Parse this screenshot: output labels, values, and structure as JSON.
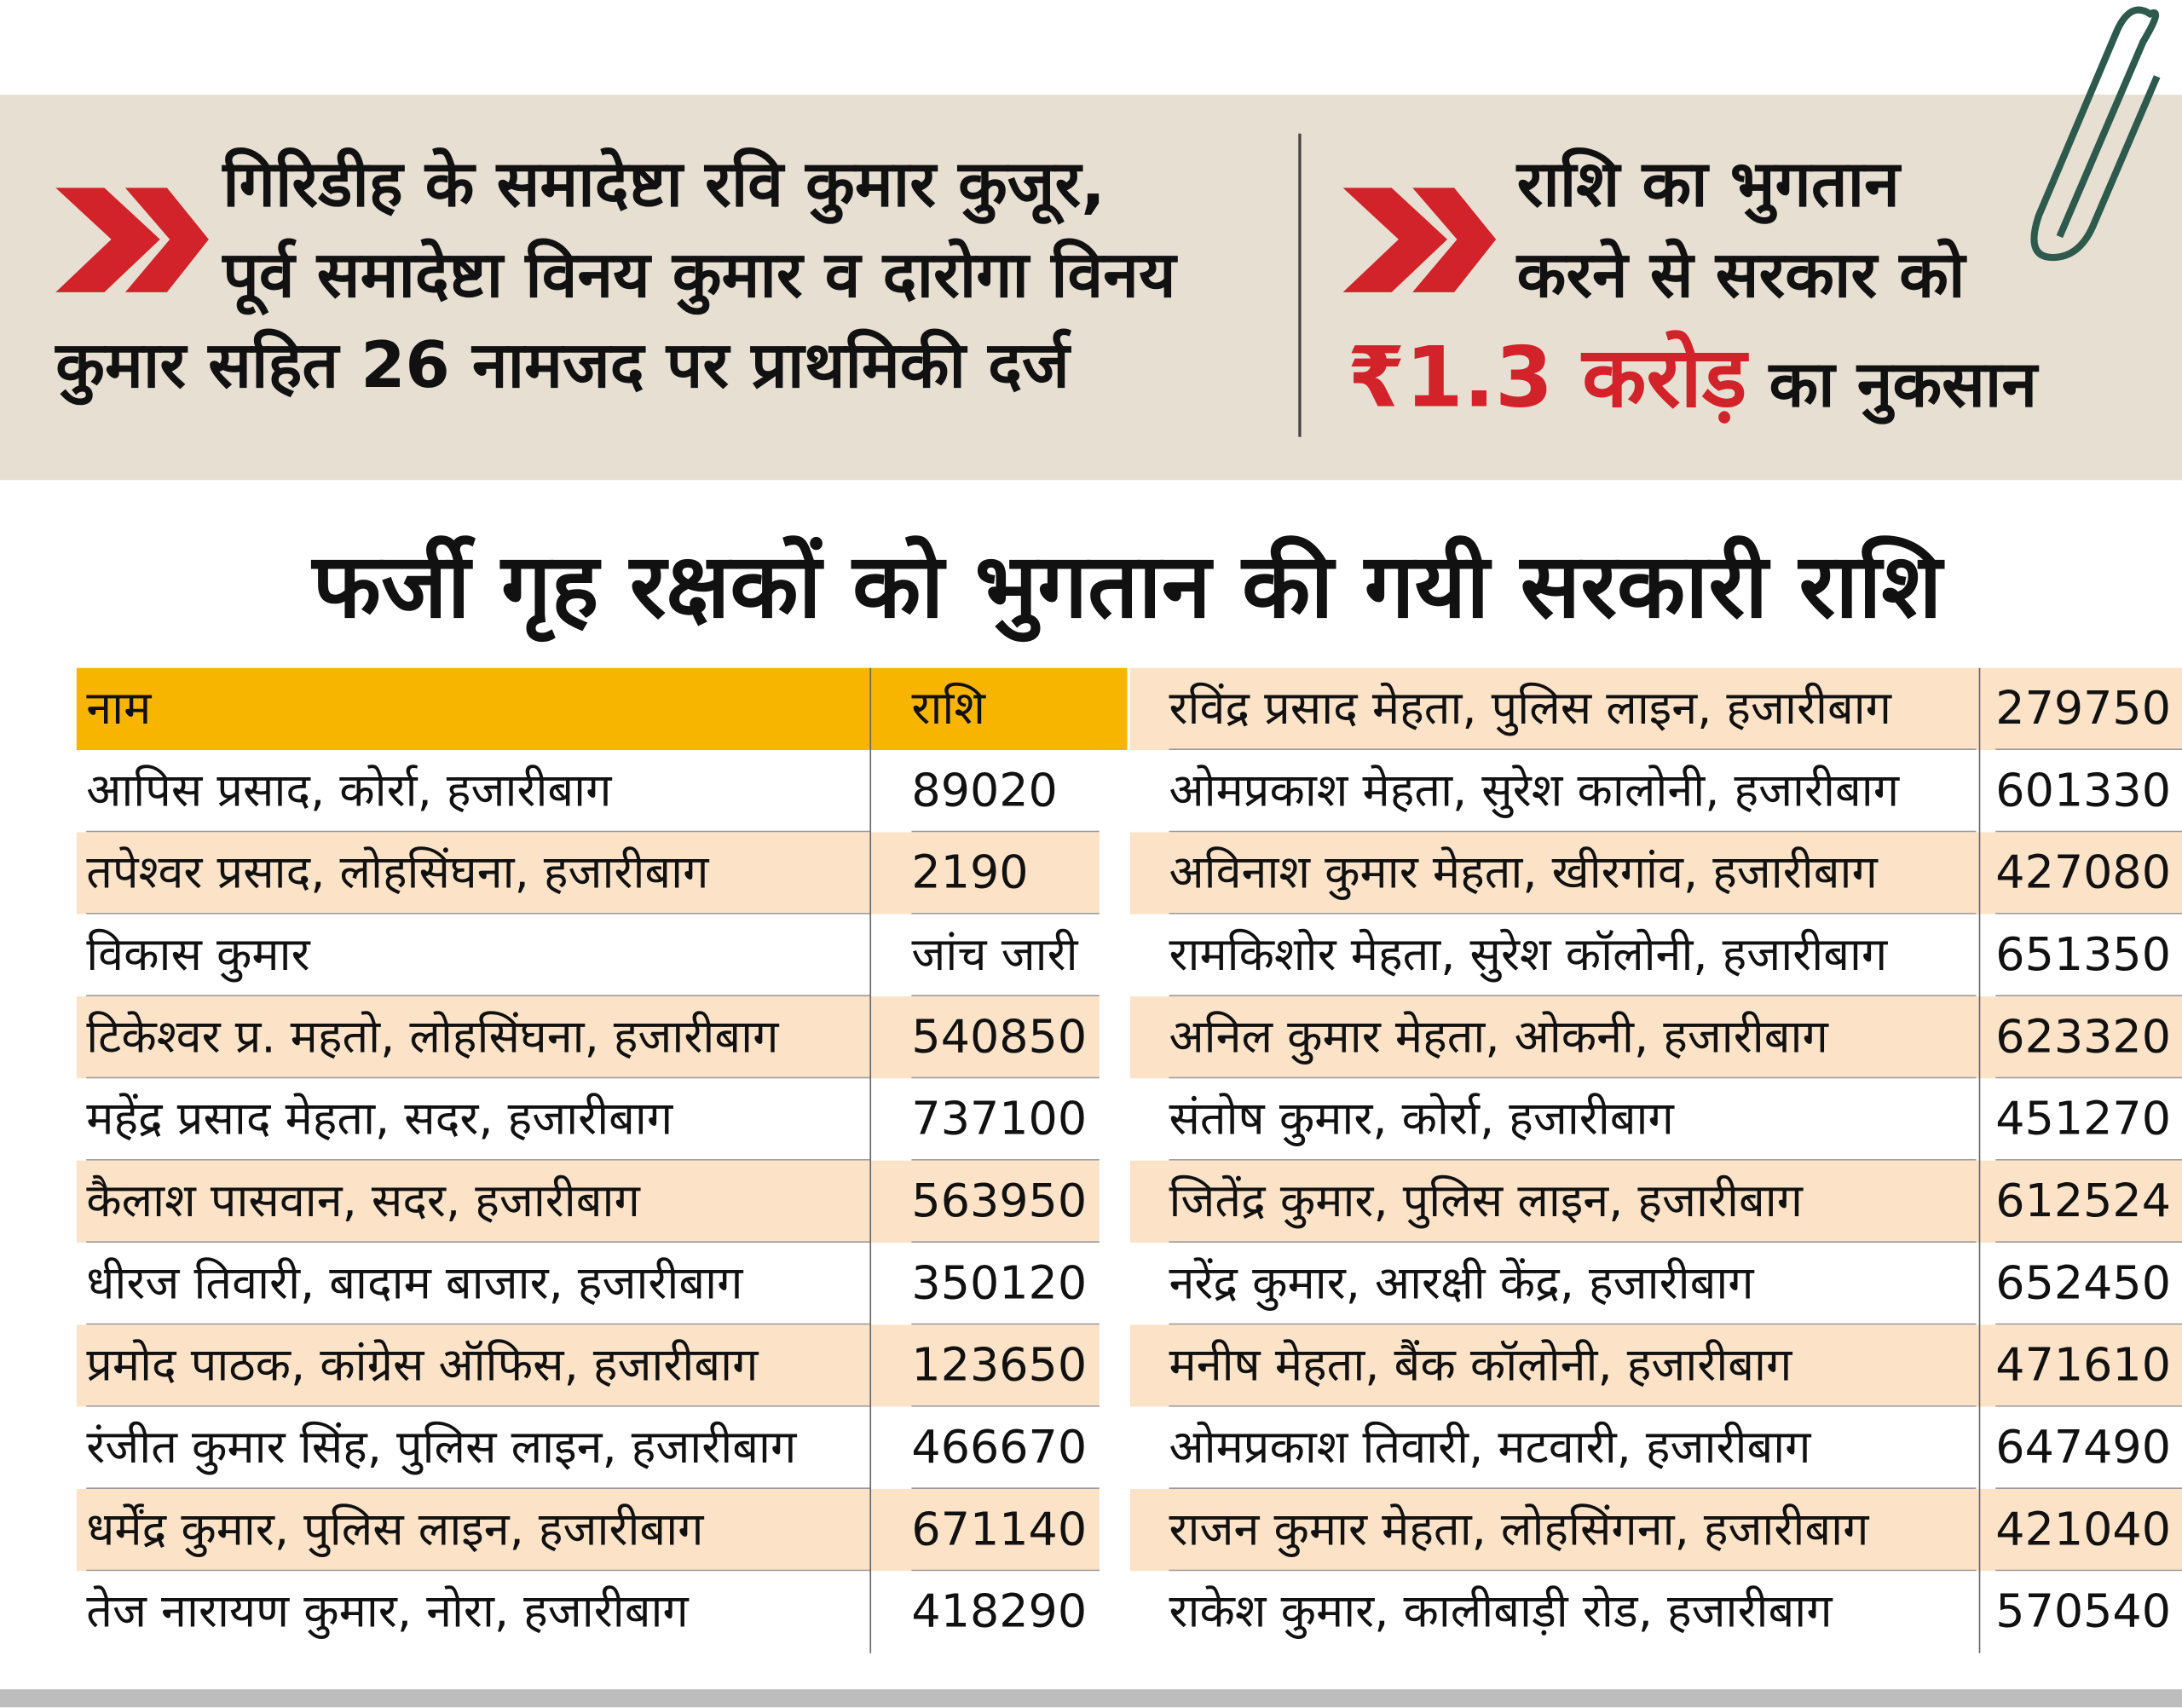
{
  "header": {
    "left": [
      "गिरिडीह के समादेष्टा रवि कुमार कुजूर,",
      "पूर्व समादेष्टा विनय कुमार व दारोगा विनय",
      "कुमार सहित 26 नामजद पर प्राथमिकी दर्ज"
    ],
    "right": [
      "राशि का भुगतान",
      "करने से सरकार को"
    ],
    "right_highlight": "₹1.3 करोड़",
    "right_end": "का नुकसान"
  },
  "title": "फर्जी गृह रक्षकों को भुगतान की गयी सरकारी राशि",
  "table": {
    "headers": [
      "नाम",
      "राशि"
    ],
    "left_rows": [
      [
        "आपिस प्रसाद, कोर्रा, हजारीबाग",
        "89020"
      ],
      [
        "तपेश्वर प्रसाद, लोहसिंघना, हजारीबाग",
        "2190"
      ],
      [
        "विकास कुमार",
        "जांच जारी"
      ],
      [
        "टिकेश्वर प्र. महतो, लोहसिंघना, हजारीबाग",
        "540850"
      ],
      [
        "महेंद्र प्रसाद मेहता, सदर, हजारीबाग",
        "737100"
      ],
      [
        "कैलाश पासवान, सदर, हजारीबाग",
        "563950"
      ],
      [
        "धीरज तिवारी, बादाम बाजार, हजारीबाग",
        "350120"
      ],
      [
        "प्रमोद पाठक, कांग्रेस ऑफिस, हजारीबाग",
        "123650"
      ],
      [
        "रंजीत कुमार सिंह, पुलिस लाइन, हजारीबाग",
        "466670"
      ],
      [
        "धर्मेंद्र कुमार, पुलिस लाइन, हजारीबाग",
        "671140"
      ],
      [
        "तेज नारायण कुमार, नोरा, हजारीबाग",
        "418290"
      ]
    ],
    "right_rows": [
      [
        "रविंद्र प्रसाद मेहता, पुलिस लाइन, हजारीबाग",
        "279750"
      ],
      [
        "ओमप्रकाश मेहता, सुरेश कालोनी, हजारीबाग",
        "601330"
      ],
      [
        "अविनाश कुमार मेहता, खीरगांव, हजारीबाग",
        "427080"
      ],
      [
        "रामकिशोर मेहता, सुरेश कॉलोनी, हजारीबाग",
        "651350"
      ],
      [
        "अनिल कुमार मेहता, ओकनी, हजारीबाग",
        "623320"
      ],
      [
        "संतोष कुमार, कोर्रा, हजारीबाग",
        "451270"
      ],
      [
        "जितेंद्र कुमार, पुलिस लाइन, हजारीबाग",
        "612524"
      ],
      [
        "नरेंद्र कुमार, आरक्षी केंद्र, हजारीबाग",
        "652450"
      ],
      [
        "मनीष मेहता, बैंक कॉलोनी, हजारीबाग",
        "471610"
      ],
      [
        "ओमप्रकाश तिवारी, मटवारी, हजारीबाग",
        "647490"
      ],
      [
        "राजन कुमार मेहता, लोहसिंगना, हजारीबाग",
        "421040"
      ],
      [
        "राकेश कुमार, कालीबाड़ी रोड, हजारीबाग",
        "570540"
      ]
    ]
  }
}
